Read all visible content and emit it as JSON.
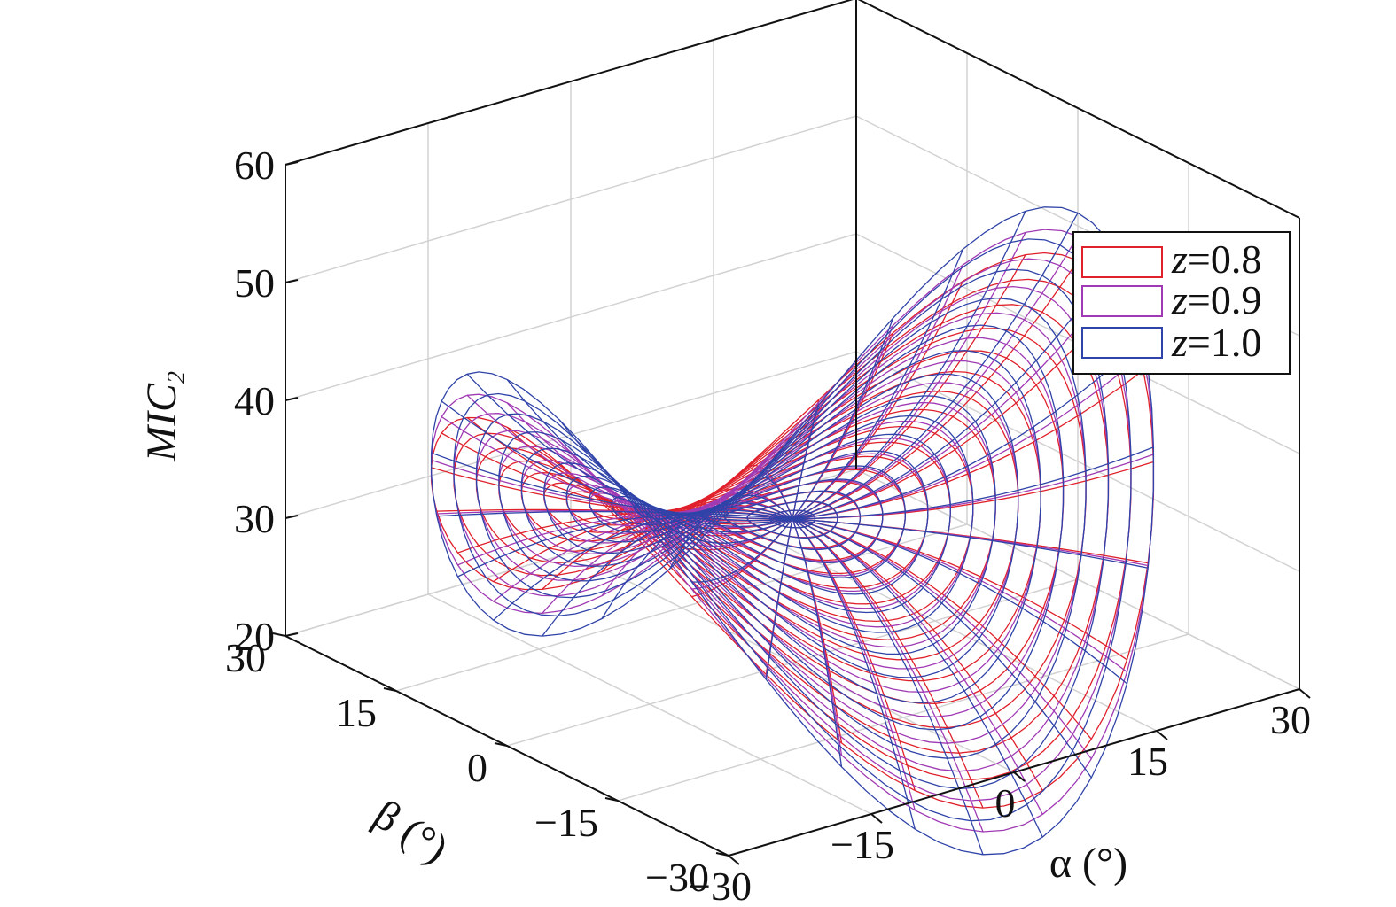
{
  "chart_data": {
    "type": "surface3d",
    "title": "",
    "zlabel_main": "MIC",
    "zlabel_sub": "2",
    "xlabel": "α (°)",
    "ylabel": "β (°)",
    "xlim": [
      -30,
      30
    ],
    "ylim": [
      -30,
      30
    ],
    "zlim": [
      20,
      60
    ],
    "xticks": [
      -30,
      -15,
      0,
      15,
      30
    ],
    "yticks": [
      -30,
      -15,
      0,
      15,
      30
    ],
    "zticks": [
      20,
      30,
      40,
      50,
      60
    ],
    "xtick_labels": [
      "−30",
      "−15",
      "0",
      "15",
      "30"
    ],
    "ytick_labels": [
      "−30",
      "−15",
      "0",
      "15",
      "30"
    ],
    "ztick_labels": [
      "20",
      "30",
      "40",
      "50",
      "60"
    ],
    "grid": true,
    "legend_position": "top-right",
    "series": [
      {
        "name": "z=0.8",
        "legend_var": "z",
        "legend_value": "=0.8",
        "color": "#e0202a",
        "base": 32.2,
        "k": 0.0165
      },
      {
        "name": "z=0.9",
        "legend_var": "z",
        "legend_value": "=0.9",
        "color": "#a03ab4",
        "base": 32.2,
        "k": 0.0188
      },
      {
        "name": "z=1.0",
        "legend_var": "z",
        "legend_value": "=1.0",
        "color": "#2f43a8",
        "base": 32.2,
        "k": 0.021
      }
    ]
  }
}
